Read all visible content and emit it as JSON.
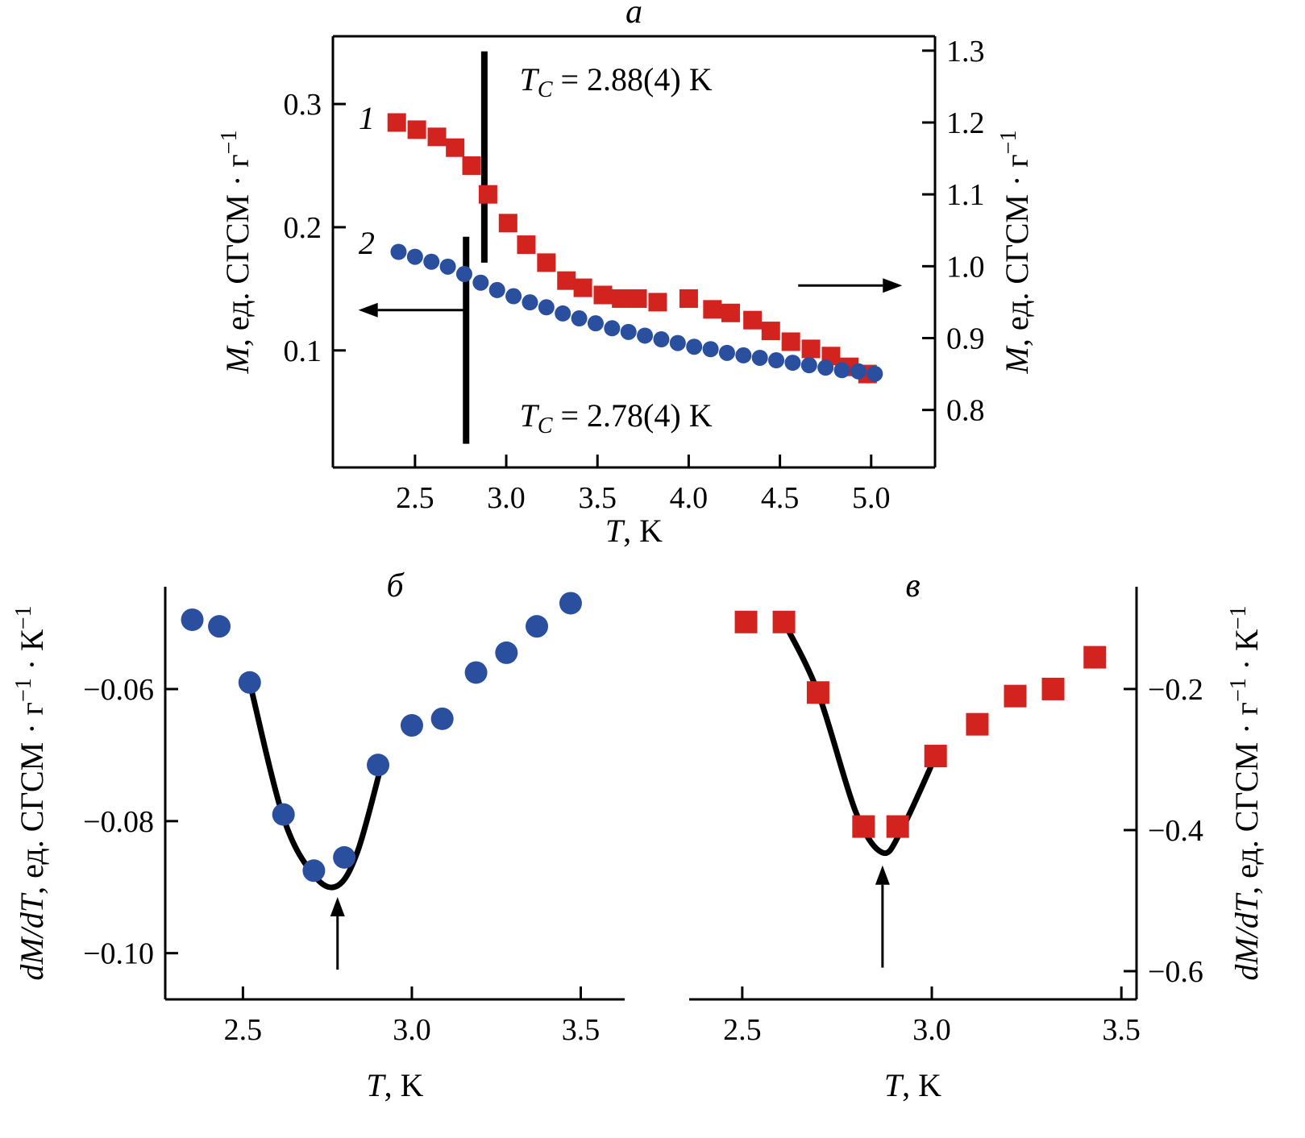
{
  "colors": {
    "red": "#d3231f",
    "blue": "#2a4f9e",
    "black": "#000000"
  },
  "chart_data": [
    {
      "id": "a",
      "type": "scatter",
      "panel_label": "a",
      "frame": "box",
      "xlabel_segments": [
        {
          "t": "T",
          "i": 1
        },
        {
          "t": ", K"
        }
      ],
      "xlim": [
        2.05,
        5.35
      ],
      "xtick_vals": [
        2.5,
        3.0,
        3.5,
        4.0,
        4.5,
        5.0
      ],
      "xtick_labels": [
        "2.5",
        "3.0",
        "3.5",
        "4.0",
        "4.5",
        "5.0"
      ],
      "axes": {
        "left": {
          "label_segments": [
            {
              "t": "M",
              "i": 1
            },
            {
              "t": ", ед. СГСМ · г"
            },
            {
              "t": "−1",
              "sup": 1
            }
          ],
          "lim": [
            0.005,
            0.355
          ],
          "ticks": [
            0.1,
            0.2,
            0.3
          ],
          "tick_labels": [
            "0.1",
            "0.2",
            "0.3"
          ]
        },
        "right": {
          "label_segments": [
            {
              "t": "M",
              "i": 1
            },
            {
              "t": ", ед. СГСМ · г"
            },
            {
              "t": "−1",
              "sup": 1
            }
          ],
          "lim": [
            0.72,
            1.32
          ],
          "ticks": [
            0.8,
            0.9,
            1.0,
            1.1,
            1.2,
            1.3
          ],
          "tick_labels": [
            "0.8",
            "0.9",
            "1.0",
            "1.1",
            "1.2",
            "1.3"
          ]
        }
      },
      "series": [
        {
          "name": "1",
          "marker": "square",
          "color": "red",
          "axis": "right",
          "msize": 23,
          "x": [
            2.4,
            2.51,
            2.62,
            2.72,
            2.81,
            2.9,
            3.01,
            3.11,
            3.22,
            3.33,
            3.42,
            3.53,
            3.63,
            3.72,
            3.83,
            4.0,
            4.13,
            4.23,
            4.35,
            4.45,
            4.56,
            4.67,
            4.78,
            4.88,
            4.98
          ],
          "y": [
            1.2,
            1.19,
            1.18,
            1.165,
            1.14,
            1.1,
            1.06,
            1.03,
            1.005,
            0.98,
            0.97,
            0.96,
            0.955,
            0.955,
            0.95,
            0.955,
            0.94,
            0.935,
            0.925,
            0.91,
            0.895,
            0.885,
            0.875,
            0.86,
            0.85
          ]
        },
        {
          "name": "2",
          "marker": "circle",
          "color": "blue",
          "axis": "left",
          "msize": 10,
          "x": [
            2.41,
            2.5,
            2.59,
            2.68,
            2.77,
            2.86,
            2.95,
            3.04,
            3.13,
            3.22,
            3.31,
            3.4,
            3.49,
            3.58,
            3.67,
            3.76,
            3.85,
            3.94,
            4.03,
            4.12,
            4.21,
            4.3,
            4.39,
            4.48,
            4.57,
            4.66,
            4.75,
            4.84,
            4.93,
            5.02
          ],
          "y": [
            0.18,
            0.176,
            0.172,
            0.168,
            0.162,
            0.155,
            0.149,
            0.144,
            0.139,
            0.135,
            0.13,
            0.126,
            0.122,
            0.118,
            0.115,
            0.112,
            0.109,
            0.106,
            0.103,
            0.101,
            0.098,
            0.096,
            0.094,
            0.092,
            0.09,
            0.088,
            0.086,
            0.084,
            0.083,
            0.081
          ]
        }
      ],
      "series_labels": [
        {
          "text": "1",
          "xf": 0.056,
          "yf": 0.215
        },
        {
          "text": "2",
          "xf": 0.056,
          "yf": 0.505
        }
      ],
      "annotations": [
        {
          "segments": [
            {
              "t": "T",
              "i": 1
            },
            {
              "t": "C",
              "i": 1,
              "sub": 1
            },
            {
              "t": " = 2.88(4) K"
            }
          ],
          "xf": 0.31,
          "yf": 0.125
        },
        {
          "segments": [
            {
              "t": "T",
              "i": 1
            },
            {
              "t": "C",
              "i": 1,
              "sub": 1
            },
            {
              "t": " = 2.78(4) K"
            }
          ],
          "xf": 0.31,
          "yf": 0.905
        }
      ],
      "vlines": [
        {
          "x": 2.88,
          "y1f": 0.035,
          "y2f": 0.525
        },
        {
          "x": 2.78,
          "y1f": 0.465,
          "y2f": 0.945
        }
      ],
      "h_arrows": [
        {
          "x1": 2.77,
          "x2": 2.19,
          "yf": 0.635
        },
        {
          "x1": 4.6,
          "x2": 5.17,
          "yf": 0.578
        }
      ]
    },
    {
      "id": "b",
      "type": "scatter",
      "panel_label": "б",
      "frame": "left-bottom",
      "xlabel_segments": [
        {
          "t": "T",
          "i": 1
        },
        {
          "t": ", K"
        }
      ],
      "xlim": [
        2.27,
        3.63
      ],
      "xtick_vals": [
        2.5,
        3.0,
        3.5
      ],
      "xtick_labels": [
        "2.5",
        "3.0",
        "3.5"
      ],
      "axes": {
        "left": {
          "label_segments": [
            {
              "t": "dM",
              "i": 1
            },
            {
              "t": "/",
              "i": 1
            },
            {
              "t": "dT",
              "i": 1
            },
            {
              "t": ", ед. СГСМ · г"
            },
            {
              "t": "−1",
              "sup": 1
            },
            {
              "t": " · К"
            },
            {
              "t": "−1",
              "sup": 1
            }
          ],
          "lim": [
            -0.107,
            -0.0445
          ],
          "ticks": [
            -0.06,
            -0.08,
            -0.1
          ],
          "tick_labels": [
            "−0.06",
            "−0.08",
            "−0.10"
          ]
        }
      },
      "series": [
        {
          "name": "dMdT-blue",
          "marker": "circle",
          "color": "blue",
          "axis": "left",
          "msize": 14,
          "x": [
            2.35,
            2.43,
            2.52,
            2.62,
            2.71,
            2.8,
            2.9,
            3.0,
            3.09,
            3.19,
            3.28,
            3.37,
            3.47
          ],
          "y": [
            -0.0495,
            -0.0505,
            -0.059,
            -0.079,
            -0.0875,
            -0.0855,
            -0.0715,
            -0.0655,
            -0.0645,
            -0.0575,
            -0.0545,
            -0.0505,
            -0.047
          ]
        }
      ],
      "curve": {
        "axis": "left",
        "points": [
          [
            2.52,
            -0.059
          ],
          [
            2.62,
            -0.0795
          ],
          [
            2.71,
            -0.0882
          ],
          [
            2.78,
            -0.0898
          ],
          [
            2.84,
            -0.0845
          ],
          [
            2.91,
            -0.0715
          ]
        ]
      },
      "v_arrow": {
        "axis": "left",
        "x": 2.78,
        "y1": -0.1025,
        "y2": -0.0915
      }
    },
    {
      "id": "v",
      "type": "scatter",
      "panel_label": "в",
      "frame": "right-bottom",
      "xlabel_segments": [
        {
          "t": "T",
          "i": 1
        },
        {
          "t": ", K"
        }
      ],
      "xlim": [
        2.36,
        3.54
      ],
      "xtick_vals": [
        2.5,
        3.0,
        3.5
      ],
      "xtick_labels": [
        "2.5",
        "3.0",
        "3.5"
      ],
      "axes": {
        "right": {
          "label_segments": [
            {
              "t": "dM",
              "i": 1
            },
            {
              "t": "/",
              "i": 1
            },
            {
              "t": "dT",
              "i": 1
            },
            {
              "t": ", ед. СГСМ · г"
            },
            {
              "t": "−1",
              "sup": 1
            },
            {
              "t": " · К"
            },
            {
              "t": "−1",
              "sup": 1
            }
          ],
          "lim": [
            -0.64,
            -0.055
          ],
          "ticks": [
            -0.2,
            -0.4,
            -0.6
          ],
          "tick_labels": [
            "−0.2",
            "−0.4",
            "−0.6"
          ]
        }
      },
      "series": [
        {
          "name": "dMdT-red",
          "marker": "square",
          "color": "red",
          "axis": "right",
          "msize": 28,
          "x": [
            2.51,
            2.61,
            2.7,
            2.82,
            2.91,
            3.01,
            3.12,
            3.22,
            3.32,
            3.43
          ],
          "y": [
            -0.105,
            -0.105,
            -0.205,
            -0.395,
            -0.395,
            -0.295,
            -0.25,
            -0.21,
            -0.2,
            -0.155
          ]
        }
      ],
      "curve": {
        "axis": "right",
        "points": [
          [
            2.61,
            -0.105
          ],
          [
            2.7,
            -0.205
          ],
          [
            2.8,
            -0.375
          ],
          [
            2.87,
            -0.432
          ],
          [
            2.92,
            -0.4
          ],
          [
            3.01,
            -0.295
          ]
        ]
      },
      "v_arrow": {
        "axis": "right",
        "x": 2.87,
        "y1": -0.595,
        "y2": -0.45
      }
    }
  ]
}
